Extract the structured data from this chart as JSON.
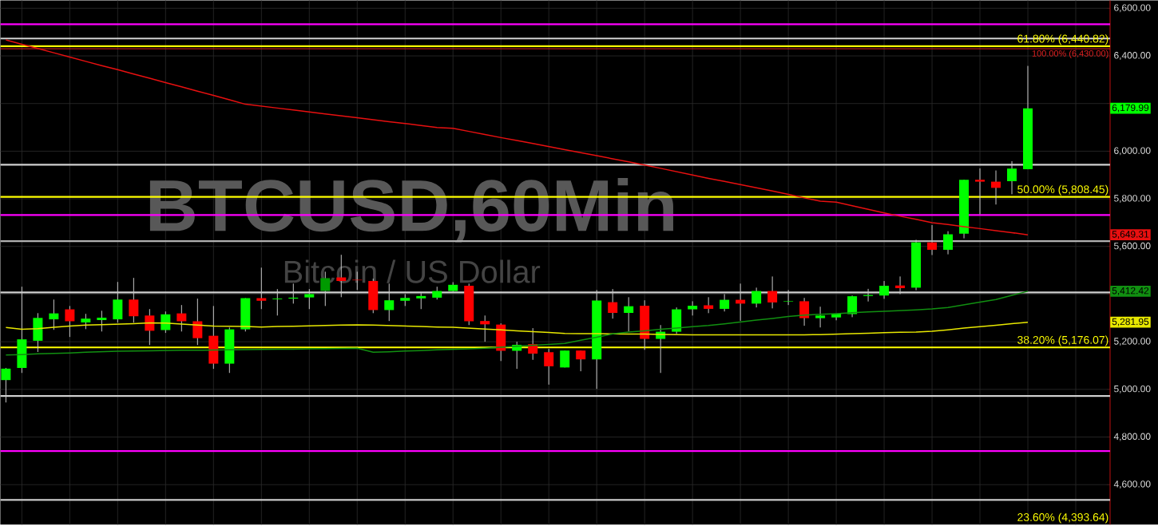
{
  "chart_data": {
    "type": "candlestick",
    "title": "BTCUSD,60Min",
    "subtitle": "Bitcoin / US Dollar",
    "categories": [
      null,
      null,
      null,
      null,
      null,
      null,
      null,
      null,
      null,
      null,
      null,
      null,
      null,
      null,
      null,
      null,
      null,
      null,
      null,
      null,
      null,
      null,
      null,
      null,
      null,
      null,
      null,
      null,
      null,
      null,
      null,
      null,
      null,
      null,
      null,
      null,
      null,
      null,
      null,
      null,
      null,
      null,
      null,
      null,
      null,
      null,
      null,
      null,
      null,
      null,
      null,
      null,
      null,
      null,
      null,
      null,
      null,
      null,
      null,
      null,
      null,
      null,
      null,
      null,
      null
    ],
    "ohlc": [
      [
        5039,
        5090,
        4945,
        5087
      ],
      [
        5090,
        5431,
        5069,
        5210
      ],
      [
        5204,
        5320,
        5157,
        5300
      ],
      [
        5294,
        5377,
        5250,
        5319
      ],
      [
        5336,
        5350,
        5220,
        5286
      ],
      [
        5281,
        5317,
        5253,
        5297
      ],
      [
        5291,
        5330,
        5243,
        5301
      ],
      [
        5294,
        5451,
        5280,
        5377
      ],
      [
        5377,
        5468,
        5280,
        5307
      ],
      [
        5310,
        5337,
        5186,
        5246
      ],
      [
        5249,
        5327,
        5237,
        5315
      ],
      [
        5319,
        5354,
        5243,
        5286
      ],
      [
        5286,
        5381,
        5186,
        5215
      ],
      [
        5225,
        5350,
        5086,
        5108
      ],
      [
        5108,
        5260,
        5069,
        5252
      ],
      [
        5252,
        5383,
        5243,
        5383
      ],
      [
        5383,
        5511,
        5337,
        5372
      ],
      [
        5378,
        5421,
        5310,
        5381
      ],
      [
        5381,
        5444,
        5360,
        5385
      ],
      [
        5386,
        5421,
        5337,
        5400
      ],
      [
        5413,
        5494,
        5350,
        5467
      ],
      [
        5470,
        5565,
        5387,
        5455
      ],
      [
        5460,
        5494,
        5417,
        5458
      ],
      [
        5455,
        5465,
        5320,
        5333
      ],
      [
        5333,
        5444,
        5287,
        5374
      ],
      [
        5372,
        5400,
        5350,
        5384
      ],
      [
        5382,
        5404,
        5337,
        5392
      ],
      [
        5385,
        5431,
        5377,
        5413
      ],
      [
        5413,
        5450,
        5410,
        5439
      ],
      [
        5435,
        5444,
        5270,
        5286
      ],
      [
        5287,
        5310,
        5200,
        5273
      ],
      [
        5272,
        5277,
        5119,
        5162
      ],
      [
        5162,
        5200,
        5086,
        5187
      ],
      [
        5190,
        5257,
        5124,
        5150
      ],
      [
        5156,
        5170,
        5020,
        5097
      ],
      [
        5092,
        5163,
        5092,
        5163
      ],
      [
        5163,
        5163,
        5076,
        5126
      ],
      [
        5126,
        5417,
        5002,
        5373
      ],
      [
        5366,
        5421,
        5297,
        5321
      ],
      [
        5321,
        5387,
        5243,
        5349
      ],
      [
        5351,
        5374,
        5166,
        5212
      ],
      [
        5212,
        5270,
        5069,
        5242
      ],
      [
        5242,
        5344,
        5233,
        5336
      ],
      [
        5336,
        5370,
        5310,
        5351
      ],
      [
        5353,
        5387,
        5320,
        5338
      ],
      [
        5338,
        5400,
        5327,
        5376
      ],
      [
        5376,
        5444,
        5288,
        5360
      ],
      [
        5360,
        5427,
        5344,
        5413
      ],
      [
        5413,
        5474,
        5340,
        5365
      ],
      [
        5369,
        5417,
        5354,
        5371
      ],
      [
        5370,
        5384,
        5267,
        5299
      ],
      [
        5299,
        5347,
        5260,
        5310
      ],
      [
        5302,
        5318,
        5290,
        5318
      ],
      [
        5316,
        5394,
        5303,
        5391
      ],
      [
        5392,
        5422,
        5369,
        5396
      ],
      [
        5394,
        5455,
        5380,
        5435
      ],
      [
        5436,
        5474,
        5400,
        5425
      ],
      [
        5427,
        5628,
        5416,
        5617
      ],
      [
        5617,
        5690,
        5564,
        5586
      ],
      [
        5586,
        5664,
        5567,
        5651
      ],
      [
        5654,
        5880,
        5634,
        5880
      ],
      [
        5880,
        5928,
        5735,
        5872
      ],
      [
        5872,
        5919,
        5776,
        5846
      ],
      [
        5874,
        5958,
        5819,
        5927
      ],
      [
        5924,
        6358,
        5924,
        6179.99
      ]
    ],
    "colors": [
      "#00ff00",
      "#00ff00",
      "#00ff00",
      "#00ff00",
      "#ff0000",
      "#00ff00",
      "#00ff00",
      "#00ff00",
      "#ff0000",
      "#ff0000",
      "#00ff00",
      "#ff0000",
      "#ff0000",
      "#ff0000",
      "#00ff00",
      "#00ff00",
      "#ff0000",
      "#00ff00",
      "#00ff00",
      "#00ff00",
      "#009a00",
      "#ff0000",
      "#ff0000",
      "#ff0000",
      "#00ff00",
      "#00ff00",
      "#00ff00",
      "#00ff00",
      "#00ff00",
      "#ff0000",
      "#ff0000",
      "#ff0000",
      "#00ff00",
      "#ff0000",
      "#ff0000",
      "#00ff00",
      "#ff0000",
      "#00ff00",
      "#ff0000",
      "#00ff00",
      "#ff0000",
      "#00ff00",
      "#00ff00",
      "#00ff00",
      "#ff0000",
      "#00ff00",
      "#ff0000",
      "#00ff00",
      "#ff0000",
      "#00ff00",
      "#ff0000",
      "#00ff00",
      "#00ff00",
      "#00ff00",
      "#00ff00",
      "#00ff00",
      "#ff0000",
      "#00ff00",
      "#ff0000",
      "#00ff00",
      "#00ff00",
      "#ff0000",
      "#ff0000",
      "#00ff00",
      "#00ff00"
    ],
    "series": [
      {
        "type": "line",
        "color": "#e81010",
        "values": [
          6467,
          6449,
          6431,
          6413,
          6395,
          6377,
          6359,
          6342,
          6324,
          6306,
          6288,
          6270,
          6252,
          6234,
          6216,
          6197,
          6189,
          6181,
          6173,
          6165,
          6156,
          6148,
          6140,
          6132,
          6124,
          6116,
          6108,
          6099,
          6096,
          6083,
          6070,
          6057,
          6045,
          6032,
          6019,
          6006,
          5994,
          5981,
          5968,
          5955,
          5942,
          5928,
          5914,
          5900,
          5886,
          5873,
          5860,
          5846,
          5833,
          5819,
          5804,
          5790,
          5786,
          5771,
          5756,
          5741,
          5727,
          5714,
          5700,
          5692,
          5683,
          5675,
          5666,
          5658,
          5649
        ]
      },
      {
        "type": "line",
        "color": "#e8e800",
        "values": [
          5260,
          5252,
          5255,
          5261,
          5266,
          5270,
          5272,
          5274,
          5276,
          5279,
          5278,
          5274,
          5270,
          5266,
          5265,
          5264,
          5262,
          5264,
          5265,
          5267,
          5268,
          5270,
          5271,
          5270,
          5268,
          5266,
          5264,
          5262,
          5261,
          5257,
          5253,
          5250,
          5246,
          5242,
          5239,
          5235,
          5234,
          5234,
          5233,
          5232,
          5232,
          5231,
          5230,
          5229,
          5229,
          5229,
          5229,
          5229,
          5229,
          5229,
          5229,
          5230,
          5232,
          5234,
          5236,
          5238,
          5240,
          5241,
          5244,
          5250,
          5257,
          5263,
          5269,
          5276,
          5282
        ]
      },
      {
        "type": "line",
        "color": "#119011",
        "values": [
          5144,
          5146,
          5149,
          5151,
          5153,
          5156,
          5158,
          5160,
          5161,
          5162,
          5163,
          5164,
          5164,
          5165,
          5166,
          5167,
          5168,
          5169,
          5169,
          5170,
          5171,
          5172,
          5173,
          5156,
          5158,
          5161,
          5163,
          5166,
          5168,
          5170,
          5173,
          5177,
          5181,
          5185,
          5189,
          5193,
          5206,
          5219,
          5233,
          5241,
          5246,
          5252,
          5257,
          5263,
          5268,
          5275,
          5283,
          5291,
          5298,
          5306,
          5312,
          5315,
          5318,
          5322,
          5325,
          5328,
          5331,
          5334,
          5338,
          5344,
          5355,
          5366,
          5377,
          5395,
          5412
        ]
      }
    ],
    "ref_lines": [
      {
        "axis": "y",
        "value": 6533,
        "color": "#ff00ff"
      },
      {
        "axis": "y",
        "value": 6473,
        "color": "#d0d0d0"
      },
      {
        "axis": "y",
        "value": 6440.82,
        "label": "61.80% (6,440.82)",
        "color": "#ffff00"
      },
      {
        "axis": "y",
        "value": 6430,
        "label": "100.00% (6,430.00)",
        "color": "#e02020"
      },
      {
        "axis": "y",
        "value": 5943,
        "color": "#d0d0d0"
      },
      {
        "axis": "y",
        "value": 5808.45,
        "label": "50.00% (5,808.45)",
        "color": "#ffff00"
      },
      {
        "axis": "y",
        "value": 5732,
        "color": "#ff00ff"
      },
      {
        "axis": "y",
        "value": 5622,
        "color": "#b0b0b0"
      },
      {
        "axis": "y",
        "value": 5407,
        "color": "#d0d0d0"
      },
      {
        "axis": "y",
        "value": 5176.07,
        "label": "38.20% (5,176.07)",
        "color": "#ffff00"
      },
      {
        "axis": "y",
        "value": 4972,
        "color": "#d0d0d0"
      },
      {
        "axis": "y",
        "value": 4741,
        "color": "#ff00ff"
      },
      {
        "axis": "y",
        "value": 4536,
        "color": "#d0d0d0"
      }
    ],
    "annotations": [
      "23.60% (4,393.64)",
      "6,179.99",
      "5,649.31",
      "5,281.95",
      "5,412.42"
    ],
    "ylim": [
      4432,
      6633
    ],
    "yticks": [
      {
        "value": 4600,
        "label": "4,600.00"
      },
      {
        "value": 4800,
        "label": "4,800.00"
      },
      {
        "value": 5000,
        "label": "5,000.00"
      },
      {
        "value": 5200,
        "label": "5,200.00"
      },
      {
        "value": 5400,
        "label": null
      },
      {
        "value": 5600,
        "label": "5,600.00"
      },
      {
        "value": 5800,
        "label": "5,800.00"
      },
      {
        "value": 6000,
        "label": "6,000.00"
      },
      {
        "value": 6200,
        "label": null
      },
      {
        "value": 6400,
        "label": "6,400.00"
      },
      {
        "value": 6600,
        "label": "6,600.00"
      }
    ],
    "tick_labels": "y",
    "grid": true
  }
}
